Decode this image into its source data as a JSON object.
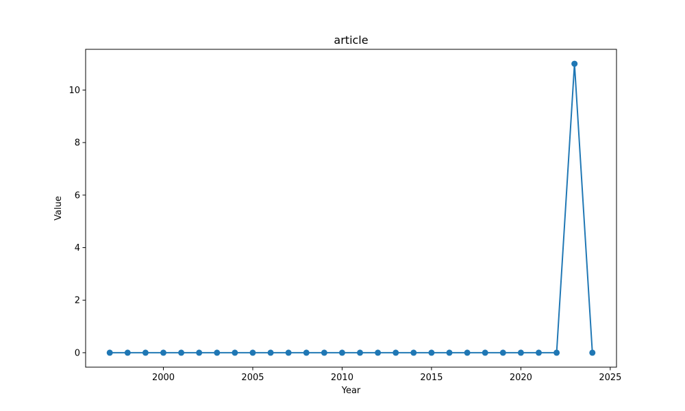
{
  "chart_data": {
    "type": "line",
    "title": "article",
    "xlabel": "Year",
    "ylabel": "Value",
    "x": [
      1997,
      1998,
      1999,
      2000,
      2001,
      2002,
      2003,
      2004,
      2005,
      2006,
      2007,
      2008,
      2009,
      2010,
      2011,
      2012,
      2013,
      2014,
      2015,
      2016,
      2017,
      2018,
      2019,
      2020,
      2021,
      2022,
      2023,
      2024
    ],
    "series": [
      {
        "values": [
          0,
          0,
          0,
          0,
          0,
          0,
          0,
          0,
          0,
          0,
          0,
          0,
          0,
          0,
          0,
          0,
          0,
          0,
          0,
          0,
          0,
          0,
          0,
          0,
          0,
          0,
          11,
          0
        ],
        "color": "#1f77b4",
        "marker": "circle"
      }
    ],
    "xlim": [
      1995.65,
      2025.35
    ],
    "ylim": [
      -0.55,
      11.55
    ],
    "xticks": [
      2000,
      2005,
      2010,
      2015,
      2020,
      2025
    ],
    "yticks": [
      0,
      2,
      4,
      6,
      8,
      10
    ],
    "grid": false,
    "legend": false
  }
}
